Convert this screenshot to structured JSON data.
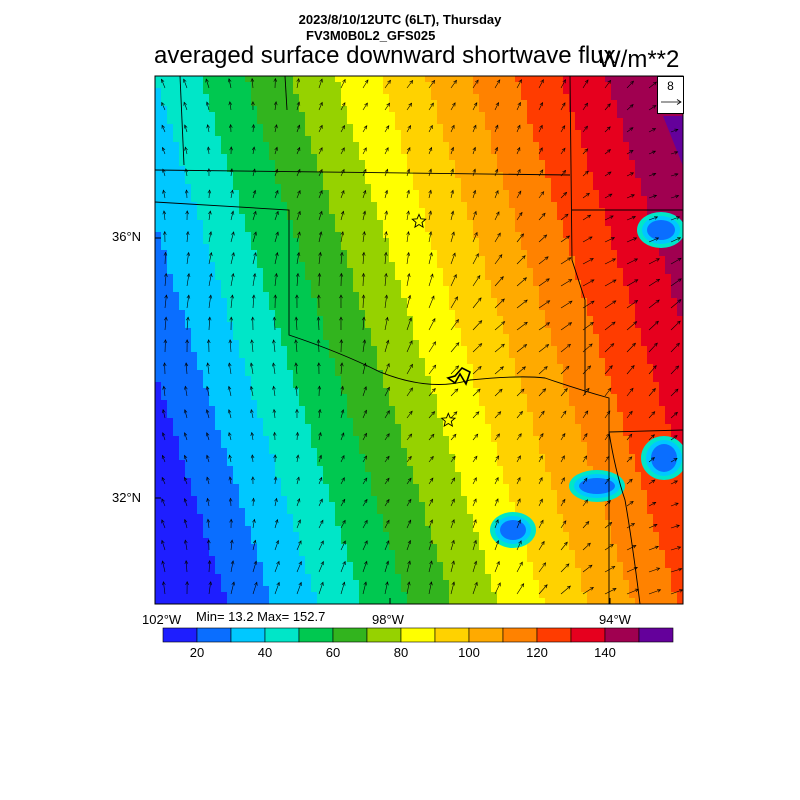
{
  "header": {
    "datetime": "2023/8/10/12UTC (6LT), Thursday",
    "model": "FV3M0B0L2_GFS025",
    "title": "averaged surface downward shortwave flux",
    "units": "W/m**2"
  },
  "map": {
    "lat_labels": [
      "36°N",
      "32°N"
    ],
    "lon_labels": [
      "102°W",
      "98°W",
      "94°W"
    ],
    "lat_range": [
      30.3,
      37.2
    ],
    "lon_range": [
      -102.0,
      -93.0
    ],
    "min_max": "Min= 13.2 Max= 152.7",
    "vector_reference": "8",
    "stations": [
      {
        "name": "star-1",
        "lon": -97.5,
        "lat": 35.3
      },
      {
        "name": "star-2",
        "lon": -97.0,
        "lat": 32.7
      }
    ]
  },
  "colorbar": {
    "colors": [
      "#1e1eff",
      "#0a6eff",
      "#00c8ff",
      "#00e6c8",
      "#00c850",
      "#32b41e",
      "#96d200",
      "#ffff00",
      "#ffd200",
      "#ffaa00",
      "#ff8200",
      "#ff3c00",
      "#e6001e",
      "#a00050",
      "#64009b"
    ],
    "tick_labels": [
      "20",
      "40",
      "60",
      "80",
      "100",
      "120",
      "140"
    ],
    "tick_values": [
      20,
      40,
      60,
      80,
      100,
      120,
      140
    ],
    "range": [
      10,
      160
    ]
  },
  "field_data": {
    "type": "heatmap",
    "description_values": {
      "min": 13.2,
      "max": 152.7
    }
  }
}
